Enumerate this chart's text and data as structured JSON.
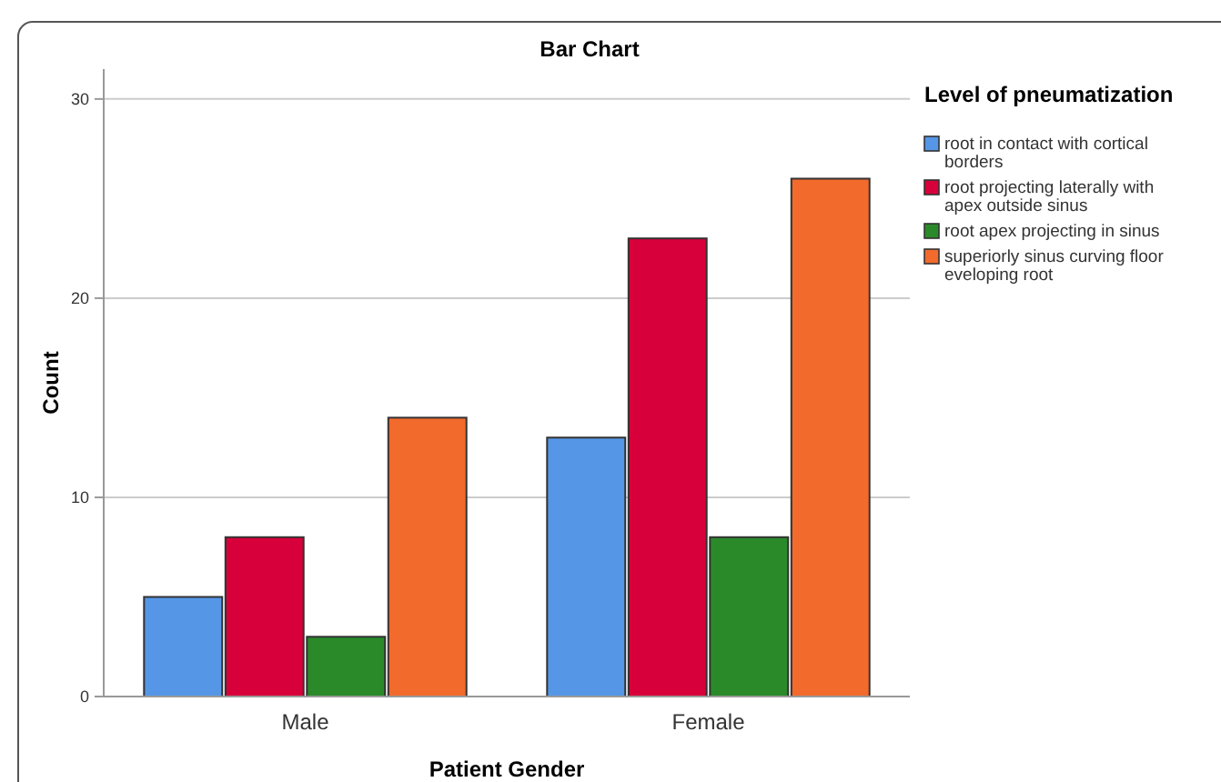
{
  "chart_data": {
    "type": "bar",
    "title": "Bar Chart",
    "xlabel": "Patient Gender",
    "ylabel": "Count",
    "legend_title": "Level of pneumatization",
    "categories": [
      "Male",
      "Female"
    ],
    "series": [
      {
        "name": "root in contact with cortical borders",
        "color": "#5596e6",
        "values": [
          5,
          13
        ]
      },
      {
        "name": "root projecting laterally with apex outside sinus",
        "color": "#d8003a",
        "values": [
          8,
          23
        ]
      },
      {
        "name": "root apex projecting in sinus",
        "color": "#2a8a2a",
        "values": [
          3,
          8
        ]
      },
      {
        "name": "superiorly sinus curving floor eveloping root",
        "color": "#f26a2c",
        "values": [
          14,
          26
        ]
      }
    ],
    "ylim": [
      0,
      31.5
    ],
    "yticks": [
      0,
      10,
      20,
      30
    ],
    "grid": "y",
    "legend": "right"
  }
}
